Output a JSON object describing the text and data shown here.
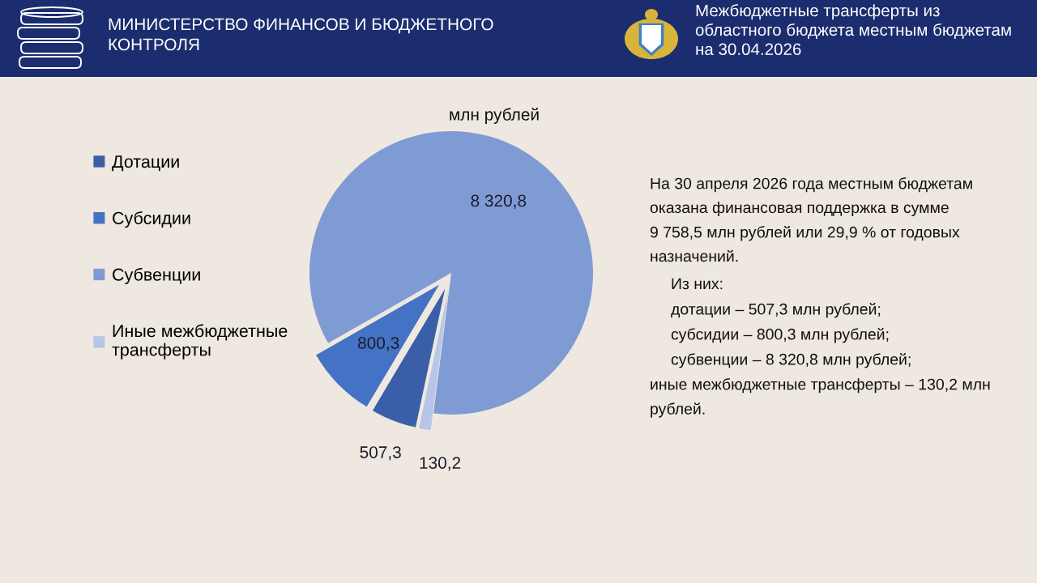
{
  "chart_data": {
    "type": "pie",
    "title": "Межбюджетные трансферты из областного бюджета местным бюджетам на 30.04.2026",
    "subtitle": "млн рублей",
    "categories": [
      "Дотации",
      "Субсидии",
      "Субвенции",
      "Иные межбюджетные трансферты"
    ],
    "values": [
      507.3,
      800.3,
      8320.8,
      130.2
    ],
    "colors": [
      "#3a5fa8",
      "#4472c4",
      "#7f9bd4",
      "#b7c5e8"
    ],
    "value_labels": [
      "507,3",
      "800,3",
      "8 320,8",
      "130,2"
    ],
    "legend": "left",
    "annotations": [
      "МИНИСТЕРСТВО ФИНАНСОВ И БЮДЖЕТНОГО КОНТРОЛЯ",
      "На 30 апреля 2026 года местным бюджетам оказана финансовая поддержка в сумме 9 758,5 млн рублей или 29,9 % от годовых назначений.",
      "Из них:",
      "дотации – 507,3 млн рублей;",
      "субсидии – 800,3 млн рублей;",
      "субвенции – 8 320,8 млн рублей;",
      "иные межбюджетные трансферты – 130,2 млн рублей."
    ]
  }
}
